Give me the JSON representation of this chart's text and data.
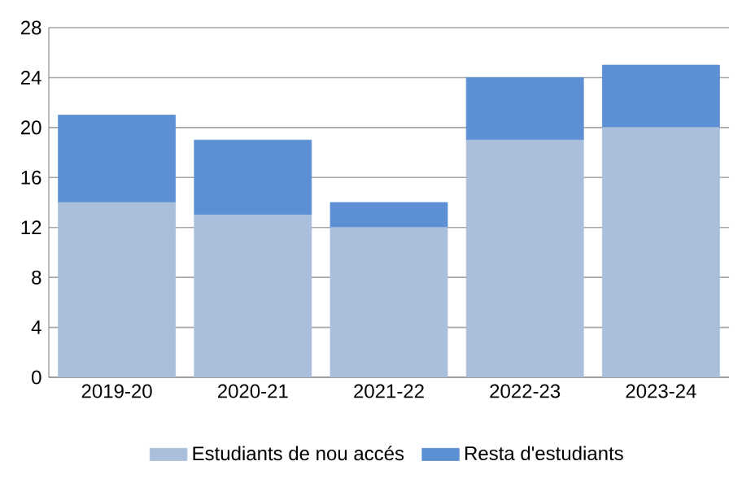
{
  "chart_data": {
    "type": "bar",
    "stacked": true,
    "categories": [
      "2019-20",
      "2020-21",
      "2021-22",
      "2022-23",
      "2023-24"
    ],
    "series": [
      {
        "name": "Estudiants de nou accés",
        "color": "#a9bfdc",
        "values": [
          14,
          13,
          12,
          19,
          20
        ]
      },
      {
        "name": "Resta d'estudiants",
        "color": "#5d8fd4",
        "values": [
          7,
          6,
          2,
          5,
          5
        ]
      }
    ],
    "ylim": [
      0,
      28
    ],
    "yticks": [
      0,
      4,
      8,
      12,
      16,
      20,
      24,
      28
    ],
    "grid": "y",
    "legend": "bottom"
  }
}
